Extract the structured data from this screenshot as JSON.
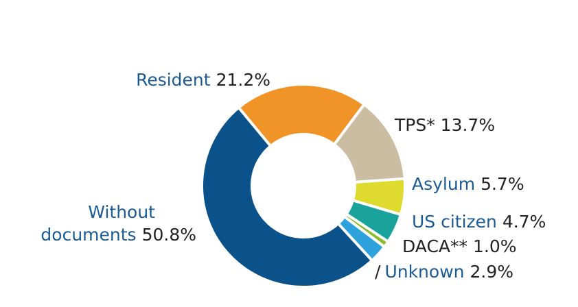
{
  "chart_data": {
    "type": "pie",
    "donut": true,
    "categories": [
      "Resident",
      "TPS*",
      "Asylum",
      "US citizen",
      "DACA**",
      "Unknown",
      "Without documents"
    ],
    "values": [
      21.2,
      13.7,
      5.7,
      4.7,
      1.0,
      2.9,
      50.8
    ],
    "colors": [
      "#f09428",
      "#cbbda2",
      "#dedb2e",
      "#19a39b",
      "#8bbd2e",
      "#2ea2dc",
      "#0a5289"
    ],
    "value_labels": [
      "21.2%",
      "13.7%",
      "5.7%",
      "4.7%",
      "1.0%",
      "2.9%",
      "50.8%"
    ],
    "category_label_color": "#1b5c96",
    "value_label_color": "#222222"
  },
  "labels": {
    "resident": {
      "name": "Resident",
      "value": "21.2%"
    },
    "tps": {
      "name": "TPS* 13.7%"
    },
    "asylum": {
      "name": "Asylum",
      "value": "5.7%"
    },
    "us_citizen": {
      "name": "US citizen",
      "value": "4.7%"
    },
    "daca": {
      "name": "DACA** 1.0%"
    },
    "unknown": {
      "prefix": "/",
      "name": "Unknown",
      "value": "2.9%"
    },
    "without_documents": {
      "line1": "Without",
      "line2": "documents",
      "value": "50.8%"
    }
  }
}
